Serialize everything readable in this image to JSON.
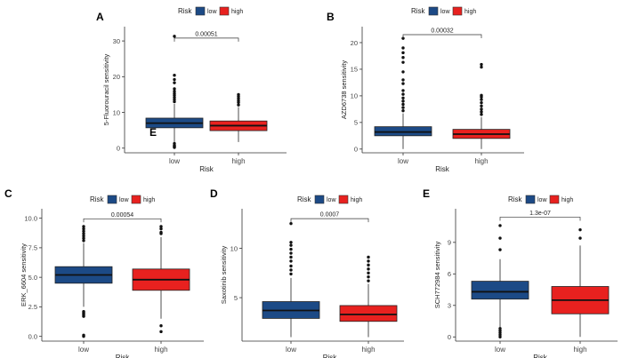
{
  "legend": {
    "title": "Risk",
    "labels": [
      "low",
      "high"
    ]
  },
  "colors": {
    "low": "#1c4a86",
    "high": "#e8211f",
    "axis": "#333333",
    "text": "#222222"
  },
  "overlay_letter": "E",
  "chart_data": [
    {
      "type": "box",
      "panel_label": "A",
      "title": "",
      "xlabel": "Risk",
      "ylabel": "5-Fluorouracil sensitivity",
      "categories": [
        "low",
        "high"
      ],
      "ylim": [
        -1.3,
        34
      ],
      "yticks": [
        0,
        10,
        20,
        30
      ],
      "ytick_labels": [
        "0",
        "10",
        "20",
        "30"
      ],
      "pvalue": "0.00051",
      "bracket_y": 30.8,
      "series": [
        {
          "name": "low",
          "whisker_low": 0.8,
          "q1": 5.7,
          "median": 7.0,
          "q3": 8.4,
          "whisker_high": 12.4,
          "outliers": [
            0.2,
            0.4,
            0.6,
            0.8,
            1.3,
            13.0,
            13.6,
            14.2,
            14.8,
            15.3,
            15.9,
            16.6,
            18.3,
            19.2,
            20.4,
            31.3
          ]
        },
        {
          "name": "high",
          "whisker_low": 1.7,
          "q1": 4.9,
          "median": 6.3,
          "q3": 7.6,
          "whisker_high": 11.5,
          "outliers": [
            12.1,
            12.8,
            13.3,
            13.9,
            14.5,
            15.0
          ]
        }
      ]
    },
    {
      "type": "box",
      "panel_label": "B",
      "title": "",
      "xlabel": "Risk",
      "ylabel": "AZD6738 sensitivity",
      "categories": [
        "low",
        "high"
      ],
      "ylim": [
        -0.7,
        23
      ],
      "yticks": [
        0,
        5,
        10,
        15,
        20
      ],
      "ytick_labels": [
        "0",
        "5",
        "10",
        "15",
        "20"
      ],
      "pvalue": "0.00032",
      "bracket_y": 21.5,
      "series": [
        {
          "name": "low",
          "whisker_low": 0.0,
          "q1": 2.5,
          "median": 3.2,
          "q3": 4.2,
          "whisker_high": 6.7,
          "outliers": [
            7.2,
            7.8,
            8.4,
            9.0,
            9.6,
            10.3,
            11.0,
            12.3,
            13.0,
            14.5,
            16.3,
            17.2,
            18.1,
            19.0,
            20.8
          ]
        },
        {
          "name": "high",
          "whisker_low": 0.0,
          "q1": 2.0,
          "median": 2.8,
          "q3": 3.7,
          "whisker_high": 6.0,
          "outliers": [
            6.5,
            7.0,
            7.5,
            8.1,
            8.7,
            9.3,
            9.8,
            10.1,
            15.4,
            15.9
          ]
        }
      ]
    },
    {
      "type": "box",
      "panel_label": "C",
      "title": "",
      "xlabel": "Risk",
      "ylabel": "ERK_6604 sensitivity",
      "categories": [
        "low",
        "high"
      ],
      "ylim": [
        -0.4,
        10.8
      ],
      "yticks": [
        0,
        2.5,
        5,
        7.5,
        10
      ],
      "ytick_labels": [
        "0.0",
        "2.5",
        "5.0",
        "7.5",
        "10.0"
      ],
      "pvalue": "0.00054",
      "bracket_y": 9.95,
      "series": [
        {
          "name": "low",
          "whisker_low": 2.5,
          "q1": 4.5,
          "median": 5.2,
          "q3": 5.9,
          "whisker_high": 7.9,
          "outliers": [
            0.0,
            0.1,
            1.7,
            1.8,
            1.9,
            2.0,
            2.1,
            8.1,
            8.3,
            8.5,
            8.7,
            8.9,
            9.1,
            9.3
          ]
        },
        {
          "name": "high",
          "whisker_low": 1.5,
          "q1": 3.9,
          "median": 4.8,
          "q3": 5.7,
          "whisker_high": 8.4,
          "outliers": [
            0.4,
            0.9,
            8.7,
            8.8,
            9.1,
            9.3
          ]
        }
      ]
    },
    {
      "type": "box",
      "panel_label": "D",
      "title": "",
      "xlabel": "Risk",
      "ylabel": "Saxotinib sensitivity",
      "categories": [
        "low",
        "high"
      ],
      "ylim": [
        0.6,
        14.0
      ],
      "yticks": [
        5,
        10
      ],
      "ytick_labels": [
        "5",
        "10"
      ],
      "pvalue": "0.0007",
      "bracket_y": 13.0,
      "series": [
        {
          "name": "low",
          "whisker_low": 1.0,
          "q1": 2.9,
          "median": 3.7,
          "q3": 4.6,
          "whisker_high": 7.0,
          "outliers": [
            7.4,
            7.8,
            8.2,
            8.7,
            9.1,
            9.5,
            9.9,
            10.3,
            10.6,
            12.5
          ]
        },
        {
          "name": "high",
          "whisker_low": 1.0,
          "q1": 2.6,
          "median": 3.3,
          "q3": 4.2,
          "whisker_high": 6.4,
          "outliers": [
            6.7,
            7.1,
            7.5,
            7.9,
            8.3,
            8.7,
            9.1
          ]
        }
      ]
    },
    {
      "type": "box",
      "panel_label": "E",
      "title": "",
      "xlabel": "Risk",
      "ylabel": "SCH772984 sensitivity",
      "categories": [
        "low",
        "high"
      ],
      "ylim": [
        -0.4,
        12.2
      ],
      "yticks": [
        0,
        3,
        6,
        9
      ],
      "ytick_labels": [
        "0",
        "3",
        "6",
        "9"
      ],
      "pvalue": "1.3e-07",
      "bracket_y": 11.4,
      "series": [
        {
          "name": "low",
          "whisker_low": 0.9,
          "q1": 3.6,
          "median": 4.3,
          "q3": 5.3,
          "whisker_high": 7.4,
          "outliers": [
            0.0,
            0.2,
            0.4,
            0.6,
            0.8,
            8.3,
            9.4,
            10.6
          ]
        },
        {
          "name": "high",
          "whisker_low": 0.0,
          "q1": 2.2,
          "median": 3.5,
          "q3": 4.8,
          "whisker_high": 8.7,
          "outliers": [
            9.4,
            10.2
          ]
        }
      ]
    }
  ]
}
